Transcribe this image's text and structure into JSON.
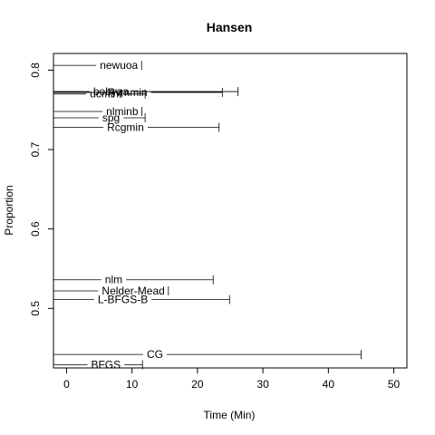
{
  "chart_data": {
    "type": "interval",
    "title": "Hansen",
    "xlabel": "Time (Min)",
    "ylabel": "Proportion",
    "xlim": [
      -2,
      52
    ],
    "ylim": [
      0.425,
      0.821
    ],
    "x_ticks": [
      0,
      10,
      20,
      30,
      40,
      50
    ],
    "y_ticks": [
      0.5,
      0.6,
      0.7,
      0.8
    ],
    "series": [
      {
        "name": "newuoa",
        "y": 0.806,
        "x_start": 8.0,
        "x_end": 8.0
      },
      {
        "name": "bobyqa",
        "y": 0.773,
        "x_start": 6.8,
        "x_end": 26.2
      },
      {
        "name": "Rvmmin",
        "y": 0.772,
        "x_start": 9.3,
        "x_end": 23.8
      },
      {
        "name": "ucminf",
        "y": 0.77,
        "x_start": 6.0,
        "x_end": 12.0
      },
      {
        "name": "nlminb",
        "y": 0.748,
        "x_start": 8.5,
        "x_end": 8.5
      },
      {
        "name": "spg",
        "y": 0.74,
        "x_start": 6.8,
        "x_end": 12.0
      },
      {
        "name": "Rcgmin",
        "y": 0.728,
        "x_start": 9.0,
        "x_end": 23.3
      },
      {
        "name": "nlm",
        "y": 0.536,
        "x_start": 7.2,
        "x_end": 22.4
      },
      {
        "name": "Nelder-Mead",
        "y": 0.522,
        "x_start": 10.2,
        "x_end": 12.2
      },
      {
        "name": "L-BFGS-B",
        "y": 0.511,
        "x_start": 8.6,
        "x_end": 24.9
      },
      {
        "name": "CG",
        "y": 0.442,
        "x_start": 13.5,
        "x_end": 45.0
      },
      {
        "name": "BFGS",
        "y": 0.429,
        "x_start": 6.0,
        "x_end": 11.6
      }
    ]
  }
}
